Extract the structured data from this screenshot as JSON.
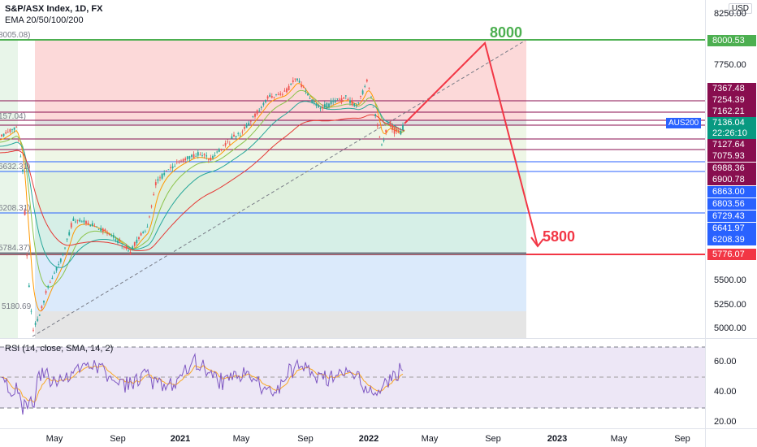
{
  "header": {
    "symbol_title": "S&P/ASX Index, 1D, FX",
    "indicator_label": "EMA 20/50/100/200",
    "currency_badge": "USD"
  },
  "annotations": {
    "target_high": "8000",
    "target_low": "5800",
    "symbol_badge": "AUS200"
  },
  "fib_left_labels": [
    "8005.08)",
    "157.04)",
    "6632.31)",
    "6208.31)",
    "5784.37)",
    "5180.69"
  ],
  "price_axis": {
    "ticks": [
      "8250.00",
      "7750.00",
      "5500.00",
      "5250.00",
      "5000.00"
    ],
    "labels": [
      {
        "text": "8000.53",
        "color": "#4caf50"
      },
      {
        "text": "7367.48",
        "color": "#880e4f"
      },
      {
        "text": "7254.39",
        "color": "#880e4f"
      },
      {
        "text": "7162.21",
        "color": "#880e4f"
      },
      {
        "text": "7136.04",
        "color": "#089981"
      },
      {
        "text": "22:26:10",
        "color": "#089981"
      },
      {
        "text": "7127.64",
        "color": "#880e4f"
      },
      {
        "text": "7075.93",
        "color": "#880e4f"
      },
      {
        "text": "6988.36",
        "color": "#880e4f"
      },
      {
        "text": "6900.78",
        "color": "#880e4f"
      },
      {
        "text": "6863.00",
        "color": "#2962ff"
      },
      {
        "text": "6803.56",
        "color": "#2962ff"
      },
      {
        "text": "6729.43",
        "color": "#2962ff"
      },
      {
        "text": "6641.97",
        "color": "#2962ff"
      },
      {
        "text": "6208.39",
        "color": "#2962ff"
      },
      {
        "text": "5776.07",
        "color": "#f23645"
      }
    ]
  },
  "rsi": {
    "legend": "RSI (14, close, SMA, 14, 2)",
    "ticks": [
      "60.00",
      "40.00",
      "20.00"
    ]
  },
  "time_axis": {
    "labels": [
      {
        "text": "May",
        "bold": false
      },
      {
        "text": "Sep",
        "bold": false
      },
      {
        "text": "2021",
        "bold": true
      },
      {
        "text": "May",
        "bold": false
      },
      {
        "text": "Sep",
        "bold": false
      },
      {
        "text": "2022",
        "bold": true
      },
      {
        "text": "May",
        "bold": false
      },
      {
        "text": "Sep",
        "bold": false
      },
      {
        "text": "2023",
        "bold": true
      },
      {
        "text": "May",
        "bold": false
      },
      {
        "text": "Sep",
        "bold": false
      }
    ]
  },
  "colors": {
    "up": "#26a69a",
    "down": "#ef5350",
    "target_line": "#4caf50",
    "support_line": "#f23645",
    "projection": "#f23645"
  }
}
